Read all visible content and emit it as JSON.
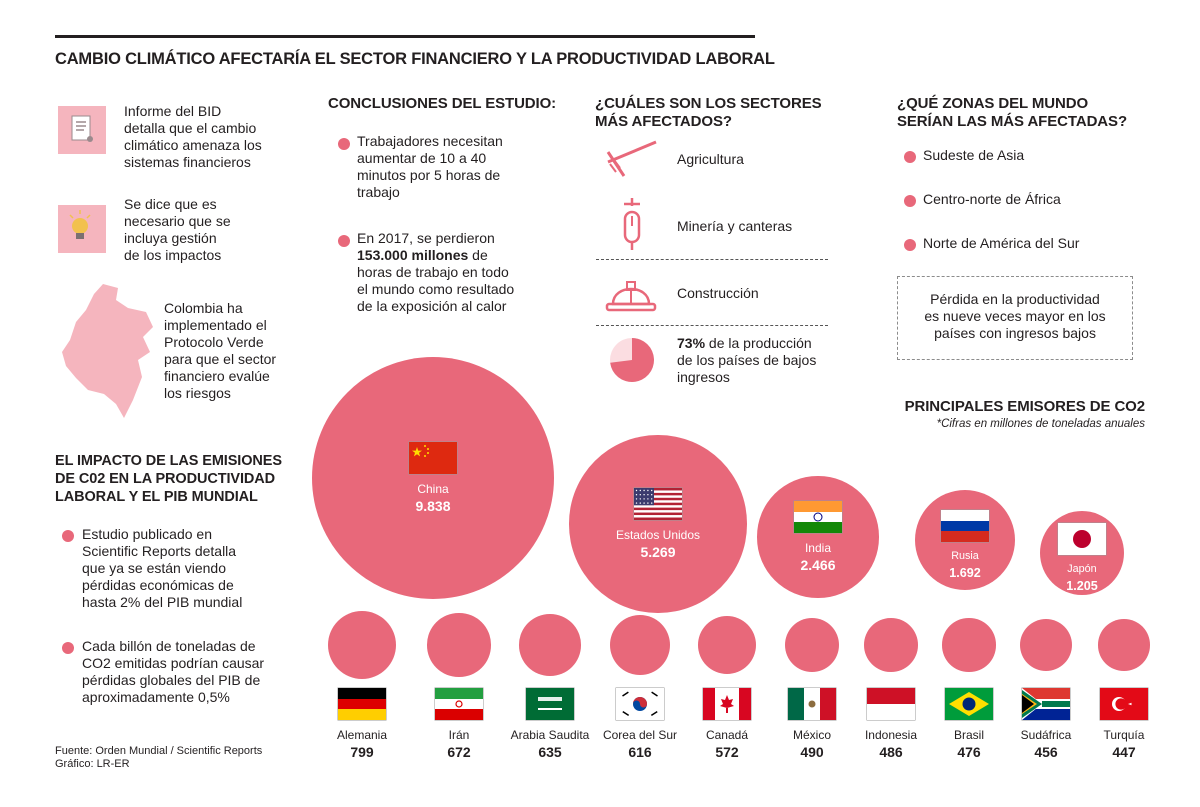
{
  "title": "CAMBIO CLIMÁTICO AFECTARÍA EL SECTOR FINANCIERO Y LA PRODUCTIVIDAD LABORAL",
  "left_notes": [
    {
      "icon": "document-icon",
      "text": [
        "Informe del BID",
        "detalla que el cambio",
        "climático amenaza los",
        "sistemas financieros"
      ]
    },
    {
      "icon": "lightbulb-icon",
      "text": [
        "Se dice que es",
        "necesario que se",
        "incluya gestión",
        "de los impactos"
      ]
    },
    {
      "icon": "colombia-map-icon",
      "text": [
        "Colombia ha",
        "implementado el",
        "Protocolo Verde",
        "para que el sector",
        "financiero evalúe",
        "los riesgos"
      ]
    }
  ],
  "impact": {
    "heading": [
      "EL IMPACTO DE LAS EMISIONES",
      "DE C02 EN LA PRODUCTIVIDAD",
      "LABORAL Y EL PIB MUNDIAL"
    ],
    "items": [
      [
        "Estudio publicado en",
        "Scientific Reports detalla",
        "que ya se están viendo",
        "pérdidas económicas de",
        "hasta 2% del PIB mundial"
      ],
      [
        "Cada billón de toneladas de",
        "CO2 emitidas podrían causar",
        "pérdidas globales del PIB de",
        "aproximadamente 0,5%"
      ]
    ]
  },
  "conclusions": {
    "heading": "CONCLUSIONES DEL ESTUDIO:",
    "item1": [
      "Trabajadores necesitan",
      "aumentar de 10 a 40",
      "minutos por 5 horas de",
      "trabajo"
    ],
    "item2_l1_pre": "En 2017, se perdieron",
    "item2_l2_bold": "153.000 millones",
    "item2_l2_rest": " de",
    "item2_rest": [
      "horas de trabajo en todo",
      "el mundo como resultado",
      "de la exposición al calor"
    ]
  },
  "sectors": {
    "heading": [
      "¿CUÁLES SON LOS SECTORES",
      "MÁS AFECTADOS?"
    ],
    "items": [
      {
        "icon": "rake-icon",
        "label": "Agricultura"
      },
      {
        "icon": "mining-icon",
        "label": "Minería y canteras"
      },
      {
        "icon": "hardhat-icon",
        "label": "Construcción"
      }
    ],
    "stat_pct": "73%",
    "stat_rest_l1": " de la producción",
    "stat_rest": [
      "de los países de bajos",
      "ingresos"
    ],
    "pie_fraction": 0.73
  },
  "zones": {
    "heading": [
      "¿QUÉ ZONAS DEL MUNDO",
      "SERÍAN LAS MÁS AFECTADAS?"
    ],
    "items": [
      "Sudeste de Asia",
      "Centro-norte de África",
      "Norte de América del Sur"
    ],
    "note": [
      "Pérdida en la productividad",
      "es nueve veces mayor en los",
      "países con ingresos bajos"
    ]
  },
  "emitters": {
    "heading": "PRINCIPALES EMISORES DE CO2",
    "subtitle": "*Cifras en millones de toneladas anuales"
  },
  "chart_data": {
    "type": "bubble",
    "title": "PRINCIPALES EMISORES DE CO2",
    "unit": "*Cifras en millones de toneladas anuales",
    "big": [
      {
        "name": "China",
        "value": 9838,
        "label": "9.838",
        "flag": "china"
      },
      {
        "name": "Estados Unidos",
        "value": 5269,
        "label": "5.269",
        "flag": "usa"
      },
      {
        "name": "India",
        "value": 2466,
        "label": "2.466",
        "flag": "india"
      },
      {
        "name": "Rusia",
        "value": 1692,
        "label": "1.692",
        "flag": "russia"
      },
      {
        "name": "Japón",
        "value": 1205,
        "label": "1.205",
        "flag": "japan"
      }
    ],
    "small": [
      {
        "name": "Alemania",
        "value": 799,
        "label": "799",
        "flag": "germany"
      },
      {
        "name": "Irán",
        "value": 672,
        "label": "672",
        "flag": "iran"
      },
      {
        "name": "Arabia Saudita",
        "value": 635,
        "label": "635",
        "flag": "saudi"
      },
      {
        "name": "Corea del Sur",
        "value": 616,
        "label": "616",
        "flag": "korea"
      },
      {
        "name": "Canadá",
        "value": 572,
        "label": "572",
        "flag": "canada"
      },
      {
        "name": "México",
        "value": 490,
        "label": "490",
        "flag": "mexico"
      },
      {
        "name": "Indonesia",
        "value": 486,
        "label": "486",
        "flag": "indonesia"
      },
      {
        "name": "Brasil",
        "value": 476,
        "label": "476",
        "flag": "brazil"
      },
      {
        "name": "Sudáfrica",
        "value": 456,
        "label": "456",
        "flag": "southafrica"
      },
      {
        "name": "Turquía",
        "value": 447,
        "label": "447",
        "flag": "turkey"
      }
    ]
  },
  "colors": {
    "accent": "#e8687a",
    "light": "#f5b5be",
    "text": "#231f20"
  },
  "source": [
    "Fuente: Orden Mundial / Scientific Reports",
    "Gráfico: LR-ER"
  ]
}
